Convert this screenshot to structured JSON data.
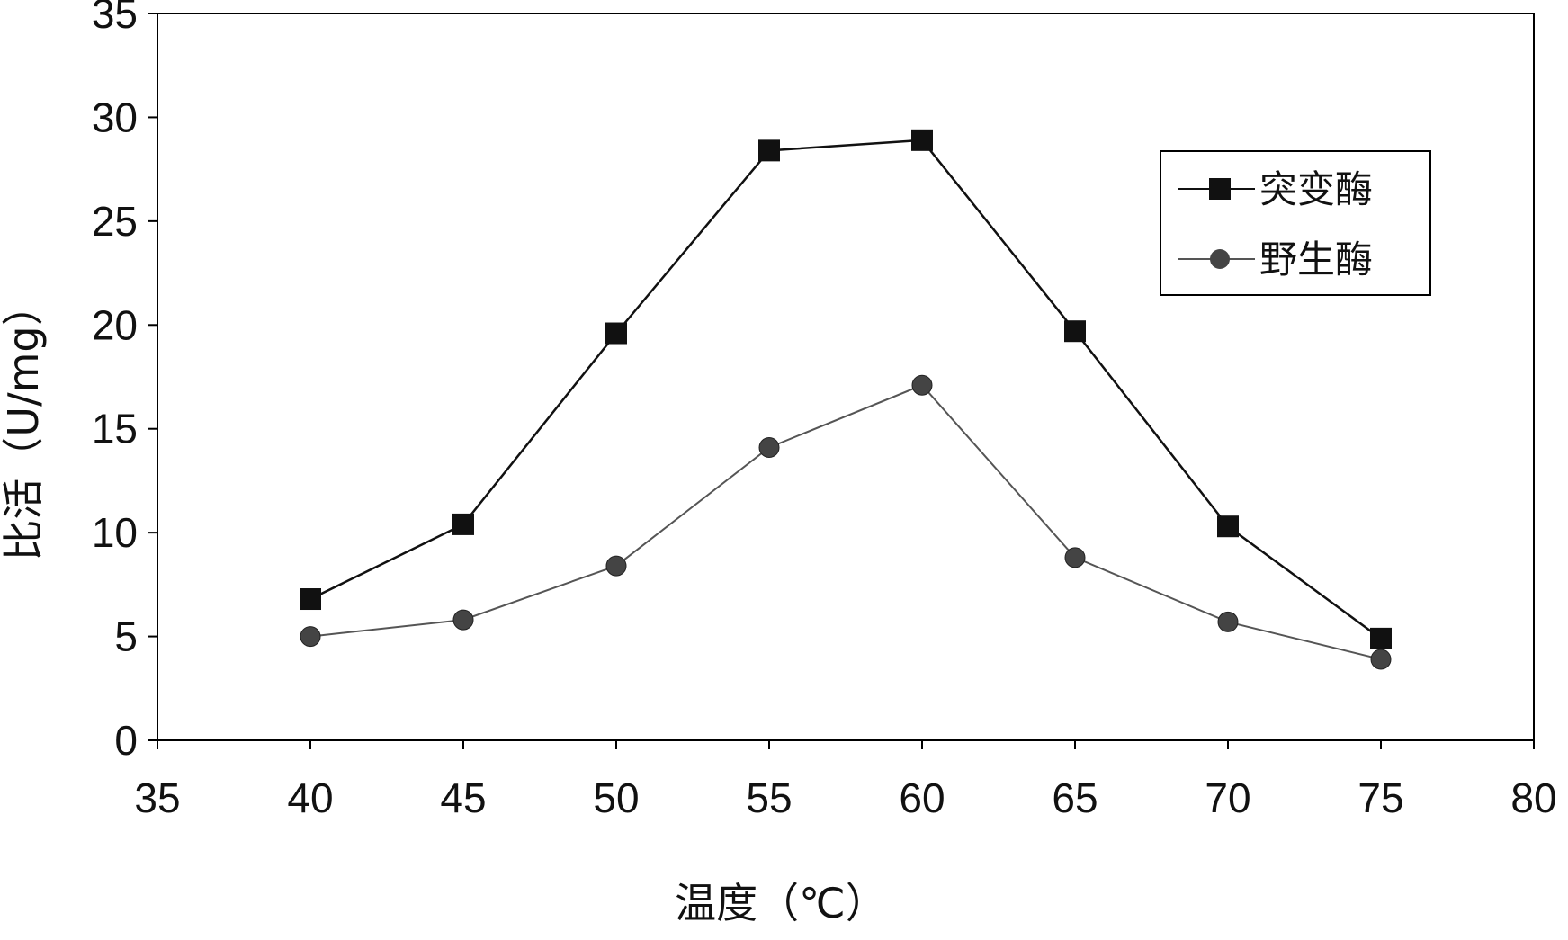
{
  "chart_data": {
    "type": "line",
    "title": "",
    "xlabel": "温度（℃）",
    "ylabel": "比活（U/mg）",
    "xlim": [
      35,
      80
    ],
    "ylim": [
      0,
      35
    ],
    "xticks": [
      "35",
      "40",
      "45",
      "50",
      "55",
      "60",
      "65",
      "70",
      "75",
      "80"
    ],
    "yticks": [
      "0",
      "5",
      "10",
      "15",
      "20",
      "25",
      "30",
      "35"
    ],
    "grid": false,
    "legend_position": "top-right",
    "x": [
      40,
      45,
      50,
      55,
      60,
      65,
      70,
      75
    ],
    "series": [
      {
        "name": "突变酶",
        "legend_label": "—■—突变酶",
        "marker": "square",
        "line_color": "#111111",
        "values": [
          6.8,
          10.4,
          19.6,
          28.4,
          28.9,
          19.7,
          10.3,
          4.9
        ]
      },
      {
        "name": "野生酶",
        "legend_label": "—●—野生酶",
        "marker": "circle",
        "line_color": "#555555",
        "values": [
          5.0,
          5.8,
          8.4,
          14.1,
          17.1,
          8.8,
          5.7,
          3.9
        ]
      }
    ]
  }
}
